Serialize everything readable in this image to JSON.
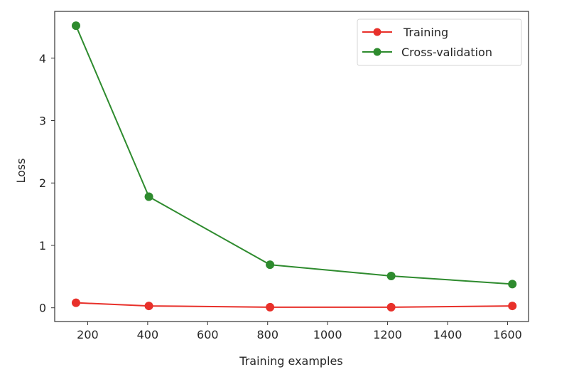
{
  "chart_data": {
    "type": "line",
    "title": "",
    "xlabel": "Training examples",
    "ylabel": "Loss",
    "xlim": [
      90,
      1670
    ],
    "ylim": [
      -0.22,
      4.75
    ],
    "xticks": [
      200,
      400,
      600,
      800,
      1000,
      1200,
      1400,
      1600
    ],
    "yticks": [
      0,
      1,
      2,
      3,
      4
    ],
    "grid": false,
    "legend_position": "upper right",
    "x": [
      161,
      404,
      808,
      1212,
      1616
    ],
    "series": [
      {
        "name": "Training",
        "color": "#e8302a",
        "marker": "o",
        "values": [
          0.08,
          0.03,
          0.01,
          0.01,
          0.03
        ]
      },
      {
        "name": "Cross-validation",
        "color": "#2e8b2e",
        "marker": "o",
        "values": [
          4.52,
          1.78,
          0.69,
          0.51,
          0.38
        ]
      }
    ]
  },
  "legend": {
    "items": [
      {
        "label": "Training"
      },
      {
        "label": "Cross-validation"
      }
    ]
  }
}
